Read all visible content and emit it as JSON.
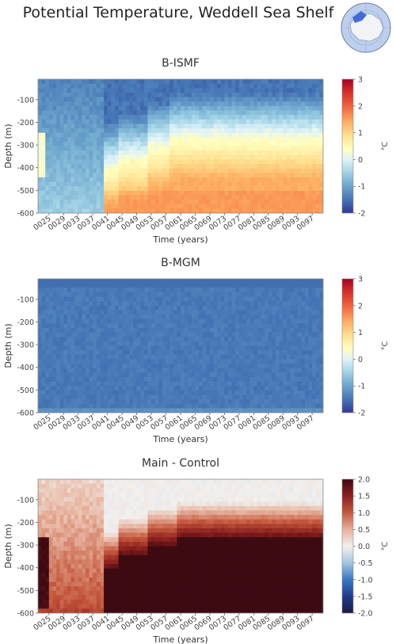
{
  "figure": {
    "title": "Potential Temperature, Weddell Sea Shelf",
    "inset_map": {
      "icon": "antarctica-locator-map-icon",
      "highlight_color": "#3b63d6"
    }
  },
  "chart_data": [
    {
      "type": "heatmap",
      "title": "B-ISMF",
      "xlabel": "Time (years)",
      "ylabel": "Depth (m)",
      "x_ticks": [
        "0025",
        "0029",
        "0033",
        "0037",
        "0041",
        "0045",
        "0049",
        "0053",
        "0057",
        "0061",
        "0065",
        "0069",
        "0073",
        "0077",
        "0081",
        "0085",
        "0089",
        "0093",
        "0097"
      ],
      "y_ticks": [
        -100,
        -200,
        -300,
        -400,
        -500,
        -600
      ],
      "xlim": [
        22,
        100
      ],
      "ylim": [
        -600,
        -10
      ],
      "colorbar": {
        "label": "°C",
        "range": [
          -2,
          3
        ],
        "ticks": [
          3,
          2,
          1,
          0,
          -1,
          -2
        ],
        "colormap": "RdYlBu_r"
      },
      "description_values": {
        "surface_temp": -1.4,
        "deep_temp_before_0041": -0.3,
        "deep_temp_after_0045": 1.3,
        "warm_layer_top_depth_after_0060": -300
      }
    },
    {
      "type": "heatmap",
      "title": "B-MGM",
      "xlabel": "Time (years)",
      "ylabel": "Depth (m)",
      "x_ticks": [
        "0025",
        "0029",
        "0033",
        "0037",
        "0041",
        "0045",
        "0049",
        "0053",
        "0057",
        "0061",
        "0065",
        "0069",
        "0073",
        "0077",
        "0081",
        "0085",
        "0089",
        "0093",
        "0097"
      ],
      "y_ticks": [
        -100,
        -200,
        -300,
        -400,
        -500,
        -600
      ],
      "xlim": [
        22,
        100
      ],
      "ylim": [
        -600,
        -10
      ],
      "colorbar": {
        "label": "°C",
        "range": [
          -2,
          3
        ],
        "ticks": [
          3,
          2,
          1,
          0,
          -1,
          -2
        ],
        "colormap": "RdYlBu_r"
      },
      "description_values": {
        "typical_temp": -1.5
      }
    },
    {
      "type": "heatmap",
      "title": "Main - Control",
      "xlabel": "Time (years)",
      "ylabel": "Depth (m)",
      "x_ticks": [
        "0025",
        "0029",
        "0033",
        "0037",
        "0041",
        "0045",
        "0049",
        "0053",
        "0057",
        "0061",
        "0065",
        "0069",
        "0073",
        "0077",
        "0081",
        "0085",
        "0089",
        "0093",
        "0097"
      ],
      "y_ticks": [
        -100,
        -200,
        -300,
        -400,
        -500,
        -600
      ],
      "xlim": [
        22,
        100
      ],
      "ylim": [
        -600,
        -10
      ],
      "colorbar": {
        "label": "°C",
        "range": [
          -2.0,
          2.0
        ],
        "ticks": [
          "2.0",
          "1.5",
          "1.0",
          "0.5",
          "0.0",
          "-0.5",
          "-1.0",
          "-1.5",
          "-2.0"
        ],
        "colormap": "RdBu_r-dark"
      },
      "description_values": {
        "surface_diff": 0.1,
        "deep_diff_after_0041": 2.0
      }
    }
  ]
}
